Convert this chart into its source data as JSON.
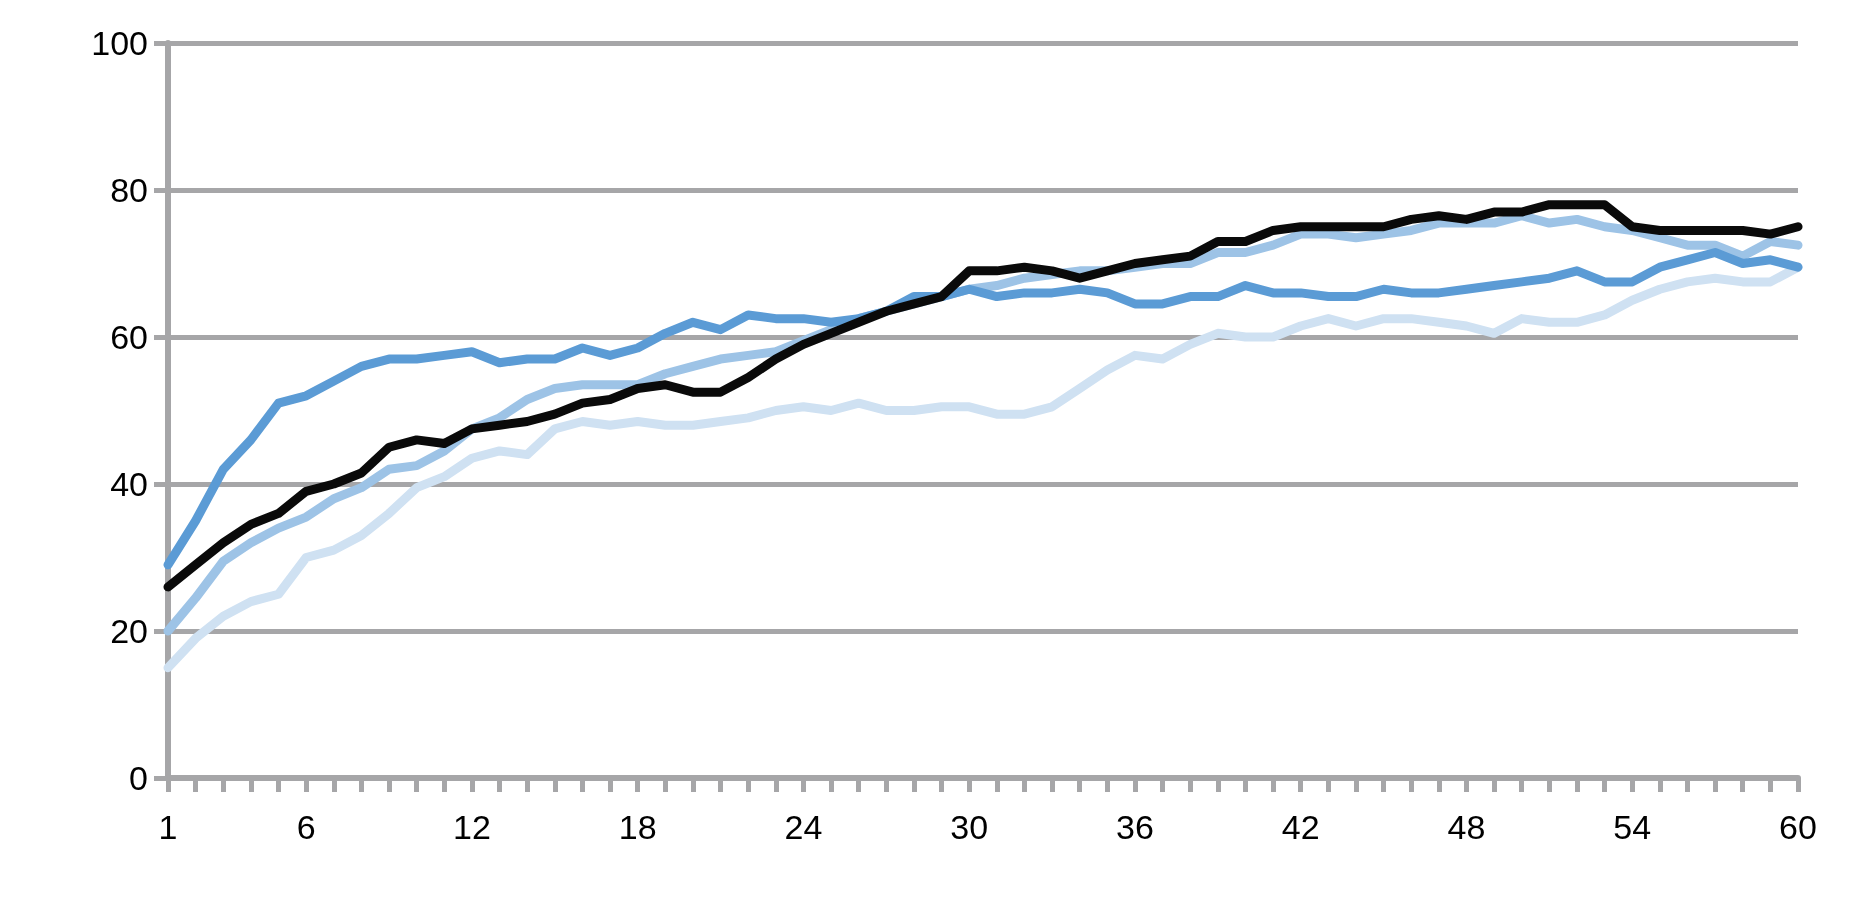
{
  "chart_data": {
    "type": "line",
    "categories": [
      "1",
      null,
      null,
      null,
      null,
      "6",
      null,
      null,
      null,
      null,
      null,
      "12",
      null,
      null,
      null,
      null,
      null,
      "18",
      null,
      null,
      null,
      null,
      null,
      "24",
      null,
      null,
      null,
      null,
      null,
      "30",
      null,
      null,
      null,
      null,
      null,
      "36",
      null,
      null,
      null,
      null,
      null,
      "42",
      null,
      null,
      null,
      null,
      null,
      "48",
      null,
      null,
      null,
      null,
      null,
      "54",
      null,
      null,
      null,
      null,
      null,
      "60"
    ],
    "series": [
      {
        "color": "#cfe1f2",
        "values": [
          15,
          19,
          22,
          24,
          25,
          30,
          31,
          33,
          36,
          39.5,
          41,
          43.5,
          44.5,
          44,
          47.5,
          48.5,
          48,
          48.5,
          48,
          48,
          48.5,
          49,
          50,
          50.5,
          50,
          51,
          50,
          50,
          50.5,
          50.5,
          49.5,
          49.5,
          50.5,
          53,
          55.5,
          57.5,
          57,
          59,
          60.5,
          60,
          60,
          61.5,
          62.5,
          61.5,
          62.5,
          62.5,
          62,
          61.5,
          60.5,
          62.5,
          62,
          62,
          63,
          65,
          66.5,
          67.5,
          68,
          67.5,
          67.5,
          69.5
        ]
      },
      {
        "color": "#9dc3e6",
        "values": [
          20,
          24.5,
          29.5,
          32,
          34,
          35.5,
          38,
          39.5,
          42,
          42.5,
          44.5,
          47.5,
          49,
          51.5,
          53,
          53.5,
          53.5,
          53.5,
          55,
          56,
          57,
          57.5,
          58,
          59.5,
          61,
          62.5,
          63.5,
          64.5,
          65.5,
          66.5,
          67,
          68,
          68.5,
          69,
          69,
          69.5,
          70,
          70,
          71.5,
          71.5,
          72.5,
          74,
          74,
          73.5,
          74,
          74.5,
          75.5,
          75.5,
          75.5,
          76.5,
          75.5,
          76,
          75,
          74.5,
          73.5,
          72.5,
          72.5,
          71,
          73,
          72.5
        ]
      },
      {
        "color": "#5b9bd5",
        "values": [
          29,
          35,
          42,
          46,
          51,
          52,
          54,
          56,
          57,
          57,
          57.5,
          58,
          56.5,
          57,
          57,
          58.5,
          57.5,
          58.5,
          60.5,
          62,
          61,
          63,
          62.5,
          62.5,
          62,
          62.5,
          63.5,
          65.5,
          65.5,
          66.5,
          65.5,
          66,
          66,
          66.5,
          66,
          64.5,
          64.5,
          65.5,
          65.5,
          67,
          66,
          66,
          65.5,
          65.5,
          66.5,
          66,
          66,
          66.5,
          67,
          67.5,
          68,
          69,
          67.5,
          67.5,
          69.5,
          70.5,
          71.5,
          70,
          70.5,
          69.5
        ]
      },
      {
        "color": "#0a0a0a",
        "values": [
          26,
          29,
          32,
          34.5,
          36,
          39,
          40,
          41.5,
          45,
          46,
          45.5,
          47.5,
          48,
          48.5,
          49.5,
          51,
          51.5,
          53,
          53.5,
          52.5,
          52.5,
          54.5,
          57,
          59,
          60.5,
          62,
          63.5,
          64.5,
          65.5,
          69,
          69,
          69.5,
          69,
          68,
          69,
          70,
          70.5,
          71,
          73,
          73,
          74.5,
          75,
          75,
          75,
          75,
          76,
          76.5,
          76,
          77,
          77,
          78,
          78,
          78,
          75,
          74.5,
          74.5,
          74.5,
          74.5,
          74,
          75
        ]
      }
    ],
    "ylim": [
      0,
      100
    ],
    "yticks": [
      0,
      20,
      40,
      60,
      80,
      100
    ],
    "grid": "y",
    "marker": "none",
    "line_style": "solid"
  }
}
